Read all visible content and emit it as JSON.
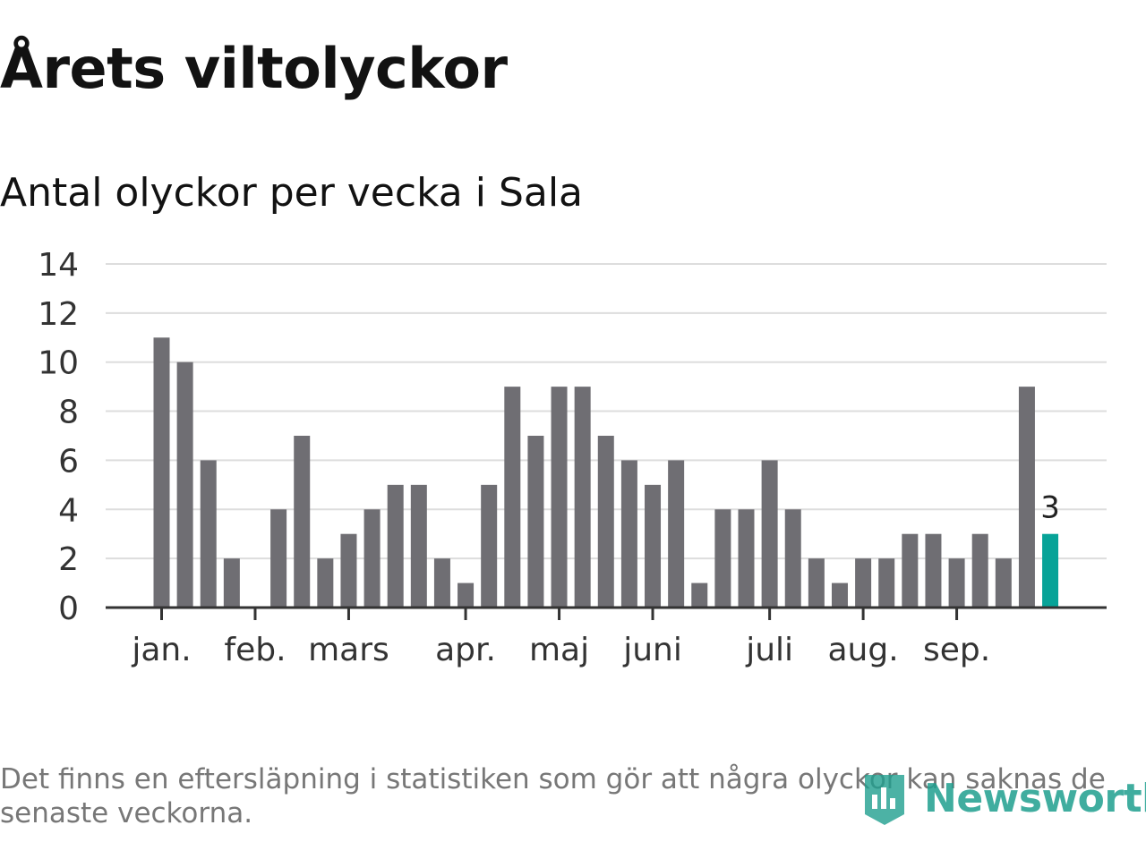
{
  "header": {
    "title": "Årets viltolyckor",
    "subtitle": "Antal olyckor per vecka i Sala"
  },
  "chart_data": {
    "type": "bar",
    "title": "Årets viltolyckor",
    "subtitle": "Antal olyckor per vecka i Sala",
    "xlabel": "",
    "ylabel": "",
    "ylim": [
      0,
      14
    ],
    "yticks": [
      0,
      2,
      4,
      6,
      8,
      10,
      12,
      14
    ],
    "grid": true,
    "values": [
      11,
      10,
      6,
      2,
      0,
      4,
      7,
      2,
      3,
      4,
      5,
      5,
      2,
      1,
      5,
      9,
      7,
      9,
      9,
      7,
      6,
      5,
      6,
      1,
      4,
      4,
      6,
      4,
      2,
      1,
      2,
      2,
      3,
      3,
      2,
      3,
      2,
      9,
      3
    ],
    "highlight_index": 38,
    "highlight_label": "3",
    "month_labels": [
      {
        "label": "jan.",
        "week_index": 0
      },
      {
        "label": "feb.",
        "week_index": 4
      },
      {
        "label": "mars",
        "week_index": 8
      },
      {
        "label": "apr.",
        "week_index": 13
      },
      {
        "label": "maj",
        "week_index": 17
      },
      {
        "label": "juni",
        "week_index": 21
      },
      {
        "label": "juli",
        "week_index": 26
      },
      {
        "label": "aug.",
        "week_index": 30
      },
      {
        "label": "sep.",
        "week_index": 34
      }
    ],
    "colors": {
      "bar": "#6f6e73",
      "highlight": "#07a398",
      "grid": "#dddddd",
      "axis": "#333333"
    }
  },
  "footnote": "Det finns en eftersläpning i statistiken som gör att några olyckor kan saknas de senaste veckorna.",
  "logo": {
    "text": "Newsworthy",
    "icon": "newsworthy-logo-icon",
    "color": "#1f9f8f"
  }
}
